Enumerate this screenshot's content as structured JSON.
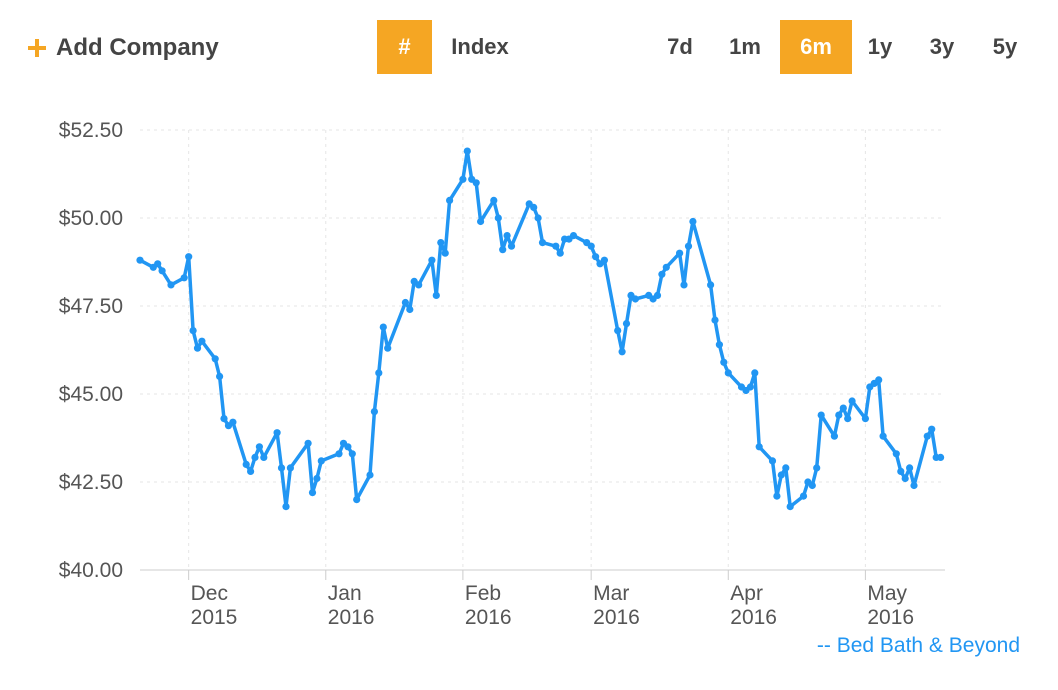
{
  "toolbar": {
    "add_company_label": "Add Company",
    "hash_label": "#",
    "index_label": "Index",
    "ranges": [
      "7d",
      "1m",
      "6m",
      "1y",
      "3y",
      "5y"
    ],
    "active_range": "6m",
    "accent_color": "#f5a623"
  },
  "legend": {
    "label": "-- Bed Bath & Beyond",
    "color": "#2196f3"
  },
  "chart_data": {
    "type": "line",
    "title": "",
    "xlabel": "",
    "ylabel": "",
    "ylim": [
      40.0,
      52.5
    ],
    "y_ticks": [
      {
        "value": 52.5,
        "label": "$52.50"
      },
      {
        "value": 50.0,
        "label": "$50.00"
      },
      {
        "value": 47.5,
        "label": "$47.50"
      },
      {
        "value": 45.0,
        "label": "$45.00"
      },
      {
        "value": 42.5,
        "label": "$42.50"
      },
      {
        "value": 40.0,
        "label": "$40.00"
      }
    ],
    "x_range": [
      "2015-11-20",
      "2016-05-20"
    ],
    "x_ticks": [
      {
        "date": "2015-12-01",
        "month": "Dec",
        "year": "2015"
      },
      {
        "date": "2016-01-01",
        "month": "Jan",
        "year": "2016"
      },
      {
        "date": "2016-02-01",
        "month": "Feb",
        "year": "2016"
      },
      {
        "date": "2016-03-01",
        "month": "Mar",
        "year": "2016"
      },
      {
        "date": "2016-04-01",
        "month": "Apr",
        "year": "2016"
      },
      {
        "date": "2016-05-02",
        "month": "May",
        "year": "2016"
      }
    ],
    "grid": true,
    "legend_position": "bottom-right",
    "series": [
      {
        "name": "Bed Bath & Beyond",
        "color": "#2196f3",
        "x": [
          "2015-11-20",
          "2015-11-23",
          "2015-11-24",
          "2015-11-25",
          "2015-11-27",
          "2015-11-30",
          "2015-12-01",
          "2015-12-02",
          "2015-12-03",
          "2015-12-04",
          "2015-12-07",
          "2015-12-08",
          "2015-12-09",
          "2015-12-10",
          "2015-12-11",
          "2015-12-14",
          "2015-12-15",
          "2015-12-16",
          "2015-12-17",
          "2015-12-18",
          "2015-12-21",
          "2015-12-22",
          "2015-12-23",
          "2015-12-24",
          "2015-12-28",
          "2015-12-29",
          "2015-12-30",
          "2015-12-31",
          "2016-01-04",
          "2016-01-05",
          "2016-01-06",
          "2016-01-07",
          "2016-01-08",
          "2016-01-11",
          "2016-01-12",
          "2016-01-13",
          "2016-01-14",
          "2016-01-15",
          "2016-01-19",
          "2016-01-20",
          "2016-01-21",
          "2016-01-22",
          "2016-01-25",
          "2016-01-26",
          "2016-01-27",
          "2016-01-28",
          "2016-01-29",
          "2016-02-01",
          "2016-02-02",
          "2016-02-03",
          "2016-02-04",
          "2016-02-05",
          "2016-02-08",
          "2016-02-09",
          "2016-02-10",
          "2016-02-11",
          "2016-02-12",
          "2016-02-16",
          "2016-02-17",
          "2016-02-18",
          "2016-02-19",
          "2016-02-22",
          "2016-02-23",
          "2016-02-24",
          "2016-02-25",
          "2016-02-26",
          "2016-02-29",
          "2016-03-01",
          "2016-03-02",
          "2016-03-03",
          "2016-03-04",
          "2016-03-07",
          "2016-03-08",
          "2016-03-09",
          "2016-03-10",
          "2016-03-11",
          "2016-03-14",
          "2016-03-15",
          "2016-03-16",
          "2016-03-17",
          "2016-03-18",
          "2016-03-21",
          "2016-03-22",
          "2016-03-23",
          "2016-03-24",
          "2016-03-28",
          "2016-03-29",
          "2016-03-30",
          "2016-03-31",
          "2016-04-01",
          "2016-04-04",
          "2016-04-05",
          "2016-04-06",
          "2016-04-07",
          "2016-04-08",
          "2016-04-11",
          "2016-04-12",
          "2016-04-13",
          "2016-04-14",
          "2016-04-15",
          "2016-04-18",
          "2016-04-19",
          "2016-04-20",
          "2016-04-21",
          "2016-04-22",
          "2016-04-25",
          "2016-04-26",
          "2016-04-27",
          "2016-04-28",
          "2016-04-29",
          "2016-05-02",
          "2016-05-03",
          "2016-05-04",
          "2016-05-05",
          "2016-05-06",
          "2016-05-09",
          "2016-05-10",
          "2016-05-11",
          "2016-05-12",
          "2016-05-13",
          "2016-05-16",
          "2016-05-17",
          "2016-05-18",
          "2016-05-19"
        ],
        "values": [
          48.8,
          48.6,
          48.7,
          48.5,
          48.1,
          48.3,
          48.9,
          46.8,
          46.3,
          46.5,
          46.0,
          45.5,
          44.3,
          44.1,
          44.2,
          43.0,
          42.8,
          43.2,
          43.5,
          43.2,
          43.9,
          42.9,
          41.8,
          42.9,
          43.6,
          42.2,
          42.6,
          43.1,
          43.3,
          43.6,
          43.5,
          43.3,
          42.0,
          42.7,
          44.5,
          45.6,
          46.9,
          46.3,
          47.6,
          47.4,
          48.2,
          48.1,
          48.8,
          47.8,
          49.3,
          49.0,
          50.5,
          51.1,
          51.9,
          51.1,
          51.0,
          49.9,
          50.5,
          50.0,
          49.1,
          49.5,
          49.2,
          50.4,
          50.3,
          50.0,
          49.3,
          49.2,
          49.0,
          49.4,
          49.4,
          49.5,
          49.3,
          49.2,
          48.9,
          48.7,
          48.8,
          46.8,
          46.2,
          47.0,
          47.8,
          47.7,
          47.8,
          47.7,
          47.8,
          48.4,
          48.6,
          49.0,
          48.1,
          49.2,
          49.9,
          48.1,
          47.1,
          46.4,
          45.9,
          45.6,
          45.2,
          45.1,
          45.2,
          45.6,
          43.5,
          43.1,
          42.1,
          42.7,
          42.9,
          41.8,
          42.1,
          42.5,
          42.4,
          42.9,
          44.4,
          43.8,
          44.4,
          44.6,
          44.3,
          44.8,
          44.3,
          45.2,
          45.3,
          45.4,
          43.8,
          43.3,
          42.8,
          42.6,
          42.9,
          42.4,
          43.8,
          44.0,
          43.2,
          43.2
        ]
      }
    ]
  }
}
